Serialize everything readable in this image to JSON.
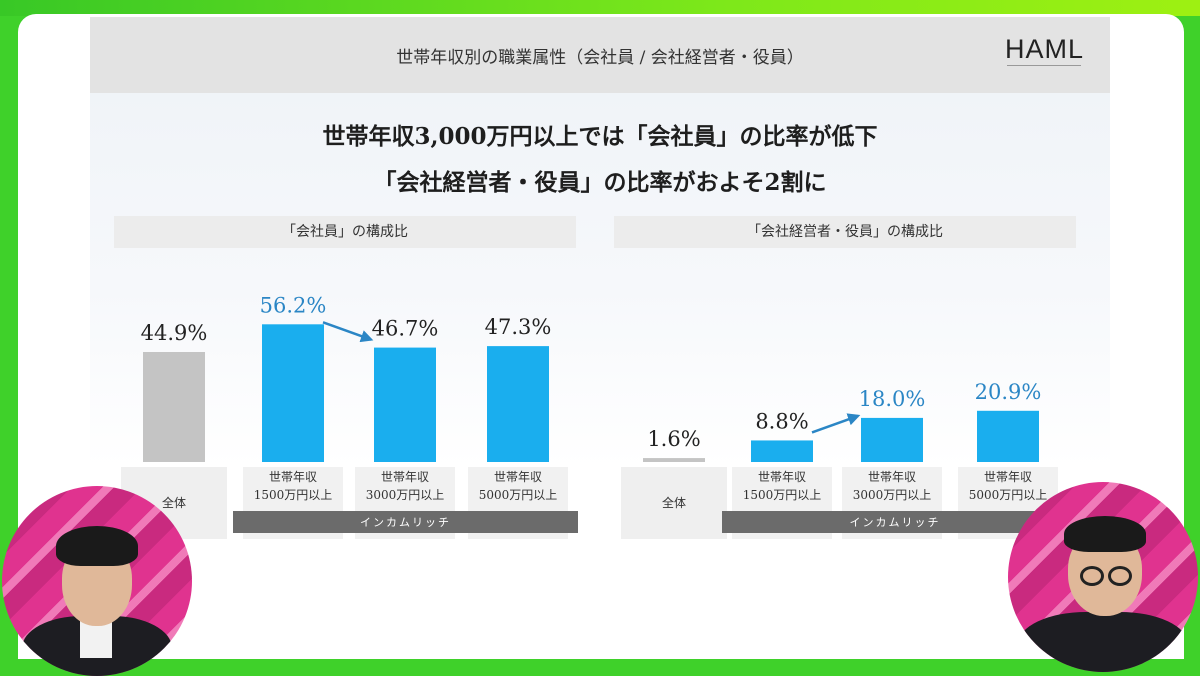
{
  "slide": {
    "header_title": "世帯年収別の職業属性（会社員 / 会社経営者・役員）",
    "logo": "HAML",
    "headline_line1": "世帯年収3,000万円以上では「会社員」の比率が低下",
    "headline_line2": "「会社経営者・役員」の比率がおよそ2割に"
  },
  "colors": {
    "overall_bar": "#c4c4c4",
    "income_bar": "#1aaeee",
    "highlight_label": "#2b86c5",
    "normal_label": "#222222",
    "arrow": "#2b86c5",
    "group_bar": "#6b6b6b"
  },
  "chart_data": [
    {
      "type": "bar",
      "title": "「会社員」の構成比",
      "categories": [
        "全体",
        "世帯年収\n1500万円以上",
        "世帯年収\n3000万円以上",
        "世帯年収\n5000万円以上"
      ],
      "values": [
        44.9,
        56.2,
        46.7,
        47.3
      ],
      "value_labels": [
        "44.9%",
        "56.2%",
        "46.7%",
        "47.3%"
      ],
      "highlighted": [
        false,
        true,
        false,
        false
      ],
      "group_label": "インカムリッチ",
      "arrow": {
        "from": 1,
        "to": 2,
        "direction": "down"
      },
      "ylim": [
        0,
        60
      ],
      "grid": false
    },
    {
      "type": "bar",
      "title": "「会社経営者・役員」の構成比",
      "categories": [
        "全体",
        "世帯年収\n1500万円以上",
        "世帯年収\n3000万円以上",
        "世帯年収\n5000万円以上"
      ],
      "values": [
        1.6,
        8.8,
        18.0,
        20.9
      ],
      "value_labels": [
        "1.6%",
        "8.8%",
        "18.0%",
        "20.9%"
      ],
      "highlighted": [
        false,
        false,
        true,
        true
      ],
      "group_label": "インカムリッチ",
      "arrow": {
        "from": 1,
        "to": 2,
        "direction": "up"
      },
      "ylim": [
        0,
        60
      ],
      "grid": false
    }
  ]
}
